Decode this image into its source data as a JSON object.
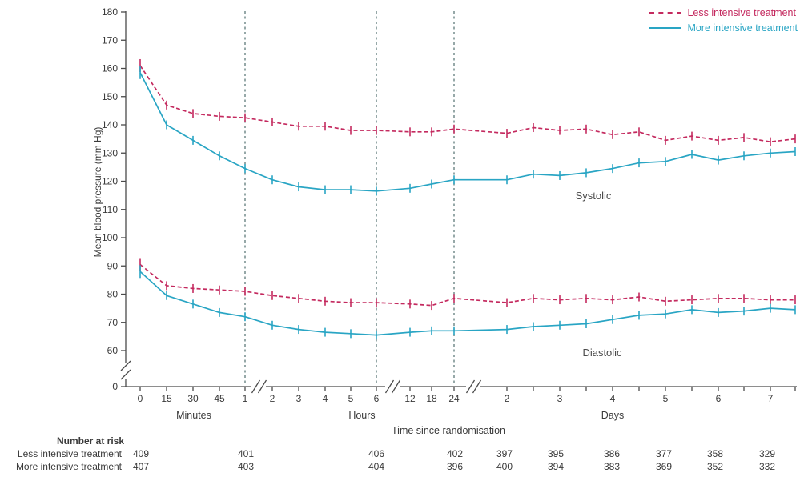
{
  "figure": {
    "background": "#ffffff",
    "text_color": "#3a3a3a",
    "axis_color": "#4a4a4a",
    "reference_line_color": "#5e7a7a"
  },
  "legend": {
    "items": [
      {
        "label": "Less intensive treatment",
        "color": "#c42a5f",
        "line_style": "dashed"
      },
      {
        "label": "More intensive treatment",
        "color": "#29a5c4",
        "line_style": "solid"
      }
    ]
  },
  "y_axis": {
    "title": "Mean blood pressure (mm Hg)"
  },
  "x_axis": {
    "title": "Time since randomisation",
    "group_labels": {
      "minutes": "Minutes",
      "hours": "Hours",
      "days": "Days"
    }
  },
  "annotations": {
    "systolic": "Systolic",
    "diastolic": "Diastolic"
  },
  "number_at_risk": {
    "header": "Number at risk",
    "rows": [
      {
        "label": "Less intensive treatment",
        "values": [
          "409",
          "401",
          "406",
          "402",
          "397",
          "395",
          "386",
          "377",
          "358",
          "329"
        ]
      },
      {
        "label": "More intensive treatment",
        "values": [
          "407",
          "403",
          "404",
          "396",
          "400",
          "394",
          "383",
          "369",
          "352",
          "332"
        ]
      }
    ]
  },
  "chart_data": {
    "type": "line",
    "title": "",
    "xlabel": "Time since randomisation",
    "ylabel": "Mean blood pressure (mm Hg)",
    "y_ticks": [
      0,
      60,
      70,
      80,
      90,
      100,
      110,
      120,
      130,
      140,
      150,
      160,
      170,
      180
    ],
    "ylim_break": "axis break between 0 and 60",
    "x_points": [
      "0 min",
      "15 min",
      "30 min",
      "45 min",
      "1 h",
      "2 h",
      "3 h",
      "4 h",
      "5 h",
      "6 h",
      "12 h",
      "18 h",
      "24 h",
      "2 d",
      "2.5 d",
      "3 d",
      "3.5 d",
      "4 d",
      "4.5 d",
      "5 d",
      "5.5 d",
      "6 d",
      "6.5 d",
      "7 d",
      "7.5 d"
    ],
    "x_tick_labels": [
      "0",
      "15",
      "30",
      "45",
      "1",
      "2",
      "3",
      "4",
      "5",
      "6",
      "12",
      "18",
      "24",
      "2",
      "",
      "3",
      "",
      "4",
      "",
      "5",
      "",
      "6",
      "",
      "7",
      ""
    ],
    "x_axis_breaks_after": [
      "1 h",
      "6 h",
      "24 h"
    ],
    "reference_lines_at": [
      "1 h",
      "6 h",
      "24 h"
    ],
    "error_bars": true,
    "legend_position": "top-right",
    "series": [
      {
        "name": "Less intensive treatment",
        "group": "Systolic",
        "color": "#c42a5f",
        "dashed": true,
        "values": [
          161,
          147,
          144,
          143,
          142.5,
          141,
          139.5,
          139.5,
          138,
          138,
          137.5,
          137.5,
          138.5,
          137,
          139,
          138,
          138.5,
          136.5,
          137.5,
          134.5,
          136,
          134.5,
          135.5,
          134,
          135
        ]
      },
      {
        "name": "More intensive treatment",
        "group": "Systolic",
        "color": "#29a5c4",
        "dashed": false,
        "values": [
          158.5,
          140,
          134.5,
          129,
          124.5,
          120.5,
          118,
          117,
          117,
          116.5,
          117.5,
          119,
          120.5,
          120.5,
          122.5,
          122,
          123,
          124.5,
          126.5,
          127,
          129.5,
          127.5,
          129,
          130,
          130.5
        ]
      },
      {
        "name": "Less intensive treatment",
        "group": "Diastolic",
        "color": "#c42a5f",
        "dashed": true,
        "values": [
          90.5,
          83,
          82,
          81.5,
          81,
          79.5,
          78.5,
          77.5,
          77,
          77,
          76.5,
          76,
          78.5,
          77,
          78.5,
          78,
          78.5,
          78,
          79,
          77.5,
          78,
          78.5,
          78.5,
          78,
          78
        ]
      },
      {
        "name": "More intensive treatment",
        "group": "Diastolic",
        "color": "#29a5c4",
        "dashed": false,
        "values": [
          88,
          79.5,
          76.5,
          73.5,
          72,
          69,
          67.5,
          66.5,
          66,
          65.5,
          66.5,
          67,
          67,
          67.5,
          68.5,
          69,
          69.5,
          71,
          72.5,
          73,
          74.5,
          73.5,
          74,
          75,
          74.5
        ]
      }
    ]
  }
}
